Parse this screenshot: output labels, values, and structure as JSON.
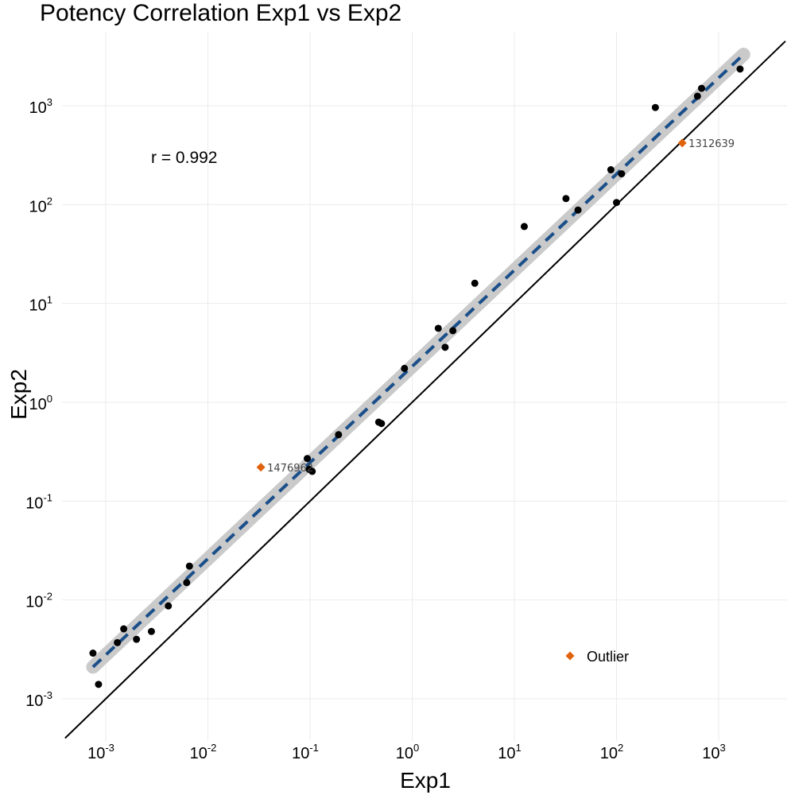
{
  "chart_data": {
    "type": "scatter",
    "title": "Potency Correlation Exp1 vs Exp2",
    "xlabel": "Exp1",
    "ylabel": "Exp2",
    "x_scale": "log10",
    "y_scale": "log10",
    "xlim": [
      0.0004,
      4500
    ],
    "ylim": [
      0.0004,
      4500
    ],
    "x_ticks": [
      {
        "value": 0.001,
        "base": "10",
        "exp": "-3"
      },
      {
        "value": 0.01,
        "base": "10",
        "exp": "-2"
      },
      {
        "value": 0.1,
        "base": "10",
        "exp": "-1"
      },
      {
        "value": 1,
        "base": "10",
        "exp": "0"
      },
      {
        "value": 10,
        "base": "10",
        "exp": "1"
      },
      {
        "value": 100,
        "base": "10",
        "exp": "2"
      },
      {
        "value": 1000,
        "base": "10",
        "exp": "3"
      }
    ],
    "y_ticks": [
      {
        "value": 0.001,
        "base": "10",
        "exp": "-3"
      },
      {
        "value": 0.01,
        "base": "10",
        "exp": "-2"
      },
      {
        "value": 0.1,
        "base": "10",
        "exp": "-1"
      },
      {
        "value": 1,
        "base": "10",
        "exp": "0"
      },
      {
        "value": 10,
        "base": "10",
        "exp": "1"
      },
      {
        "value": 100,
        "base": "10",
        "exp": "2"
      },
      {
        "value": 1000,
        "base": "10",
        "exp": "3"
      }
    ],
    "grid": true,
    "series": [
      {
        "name": "",
        "color": "#000000",
        "marker": "circle",
        "points": [
          {
            "x": 0.00075,
            "y": 0.0029
          },
          {
            "x": 0.00085,
            "y": 0.0014
          },
          {
            "x": 0.0013,
            "y": 0.0037
          },
          {
            "x": 0.0015,
            "y": 0.0051
          },
          {
            "x": 0.002,
            "y": 0.004
          },
          {
            "x": 0.0028,
            "y": 0.0048
          },
          {
            "x": 0.0041,
            "y": 0.0087
          },
          {
            "x": 0.0062,
            "y": 0.015
          },
          {
            "x": 0.0066,
            "y": 0.022
          },
          {
            "x": 0.094,
            "y": 0.27
          },
          {
            "x": 0.098,
            "y": 0.21
          },
          {
            "x": 0.105,
            "y": 0.2
          },
          {
            "x": 0.19,
            "y": 0.47
          },
          {
            "x": 0.47,
            "y": 0.63
          },
          {
            "x": 0.5,
            "y": 0.61
          },
          {
            "x": 0.84,
            "y": 2.2
          },
          {
            "x": 1.8,
            "y": 5.6
          },
          {
            "x": 2.1,
            "y": 3.6
          },
          {
            "x": 2.5,
            "y": 5.3
          },
          {
            "x": 4.1,
            "y": 16
          },
          {
            "x": 12.5,
            "y": 60
          },
          {
            "x": 32,
            "y": 115
          },
          {
            "x": 42,
            "y": 88
          },
          {
            "x": 88,
            "y": 225
          },
          {
            "x": 100,
            "y": 105
          },
          {
            "x": 112,
            "y": 205
          },
          {
            "x": 240,
            "y": 960
          },
          {
            "x": 620,
            "y": 1250
          },
          {
            "x": 680,
            "y": 1500
          },
          {
            "x": 1620,
            "y": 2350
          }
        ]
      },
      {
        "name": "Outlier",
        "color": "#E0620C",
        "marker": "diamond",
        "points": [
          {
            "x": 0.033,
            "y": 0.22,
            "label": "1476962"
          },
          {
            "x": 440,
            "y": 420,
            "label": "1312639"
          }
        ]
      }
    ],
    "regression": {
      "style": "dashed",
      "color": "#1B4F8A",
      "band_color": "#C8C8C8",
      "from": {
        "x": 0.00075,
        "y": 0.0021
      },
      "to": {
        "x": 1750,
        "y": 3300
      }
    },
    "identity_line": {
      "color": "#000000",
      "from": 0.0004,
      "to": 4500
    },
    "annotation": "r = 0.992",
    "legend": {
      "position": "bottom-right",
      "entries": [
        {
          "label": "Outlier",
          "color": "#E0620C",
          "marker": "diamond"
        }
      ]
    }
  }
}
